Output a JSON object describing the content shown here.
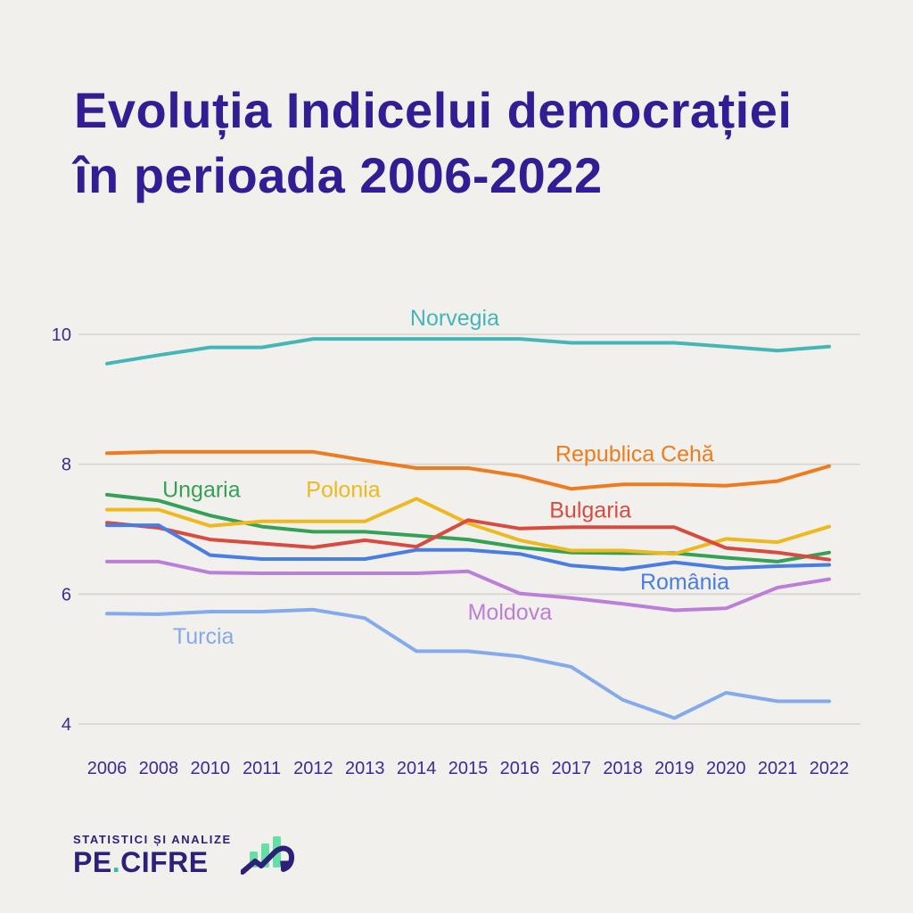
{
  "title": {
    "line1": "Evoluția Indicelui democrației",
    "line2": "în perioada 2006-2022"
  },
  "colors": {
    "background": "#f2f0ec",
    "title_text": "#311d94",
    "axis_text": "#3b2b96",
    "gridline": "#d7d4ce"
  },
  "chart_data": {
    "type": "line",
    "title": "Evoluția Indicelui democrației în perioada 2006-2022",
    "xlabel": "",
    "ylabel": "",
    "categories": [
      "2006",
      "2008",
      "2010",
      "2011",
      "2012",
      "2013",
      "2014",
      "2015",
      "2016",
      "2017",
      "2018",
      "2019",
      "2020",
      "2021",
      "2022"
    ],
    "yticks": [
      10,
      8,
      6,
      4
    ],
    "ylim": [
      3.6,
      10.4
    ],
    "grid": "horizontal-only",
    "legend": "inline-colored-labels",
    "series": [
      {
        "name": "Norvegia",
        "color": "#46b5b8",
        "label_pos": {
          "xi": 6.74,
          "value": 10.26
        },
        "values": [
          9.55,
          9.68,
          9.8,
          9.8,
          9.93,
          9.93,
          9.93,
          9.93,
          9.93,
          9.87,
          9.87,
          9.87,
          9.81,
          9.75,
          9.81
        ]
      },
      {
        "name": "Republica Cehă",
        "color": "#ee7b1e",
        "label_pos": {
          "xi": 10.23,
          "value": 8.17
        },
        "values": [
          8.17,
          8.19,
          8.19,
          8.19,
          8.19,
          8.06,
          7.94,
          7.94,
          7.82,
          7.62,
          7.69,
          7.69,
          7.67,
          7.74,
          7.97
        ]
      },
      {
        "name": "Ungaria",
        "color": "#34a157",
        "label_pos": {
          "xi": 1.83,
          "value": 7.62
        },
        "values": [
          7.53,
          7.44,
          7.21,
          7.04,
          6.96,
          6.96,
          6.9,
          6.84,
          6.72,
          6.64,
          6.63,
          6.63,
          6.56,
          6.5,
          6.64
        ]
      },
      {
        "name": "Polonia",
        "color": "#eeb91f",
        "label_pos": {
          "xi": 4.58,
          "value": 7.62
        },
        "values": [
          7.3,
          7.3,
          7.05,
          7.12,
          7.12,
          7.12,
          7.47,
          7.09,
          6.83,
          6.67,
          6.67,
          6.62,
          6.85,
          6.8,
          7.04
        ]
      },
      {
        "name": "Bulgaria",
        "color": "#d84b3f",
        "label_pos": {
          "xi": 9.37,
          "value": 7.3
        },
        "values": [
          7.1,
          7.02,
          6.84,
          6.78,
          6.72,
          6.83,
          6.73,
          7.14,
          7.01,
          7.03,
          7.03,
          7.03,
          6.71,
          6.64,
          6.53
        ]
      },
      {
        "name": "România",
        "color": "#4a7de4",
        "label_pos": {
          "xi": 11.2,
          "value": 6.2
        },
        "values": [
          7.06,
          7.06,
          6.6,
          6.54,
          6.54,
          6.54,
          6.68,
          6.68,
          6.62,
          6.44,
          6.38,
          6.49,
          6.4,
          6.43,
          6.45
        ]
      },
      {
        "name": "Moldova",
        "color": "#bb7ed9",
        "label_pos": {
          "xi": 7.81,
          "value": 5.73
        },
        "values": [
          6.5,
          6.5,
          6.33,
          6.32,
          6.32,
          6.32,
          6.32,
          6.35,
          6.01,
          5.94,
          5.85,
          5.75,
          5.78,
          6.1,
          6.23
        ]
      },
      {
        "name": "Turcia",
        "color": "#85aaec",
        "label_pos": {
          "xi": 1.87,
          "value": 5.36
        },
        "values": [
          5.7,
          5.69,
          5.73,
          5.73,
          5.76,
          5.63,
          5.12,
          5.12,
          5.04,
          4.88,
          4.37,
          4.09,
          4.48,
          4.35,
          4.35
        ]
      }
    ]
  },
  "footer": {
    "tagline": "STATISTICI ȘI ANALIZE",
    "brand_pe": "PE",
    "brand_dot": ".",
    "brand_cifre": "CIFRE",
    "logo_icon": "bar-chart-arrow-icon",
    "logo_colors": {
      "text": "#2b2178",
      "dot_accent": "#2bc39e",
      "bars": "#63dfa7"
    }
  }
}
